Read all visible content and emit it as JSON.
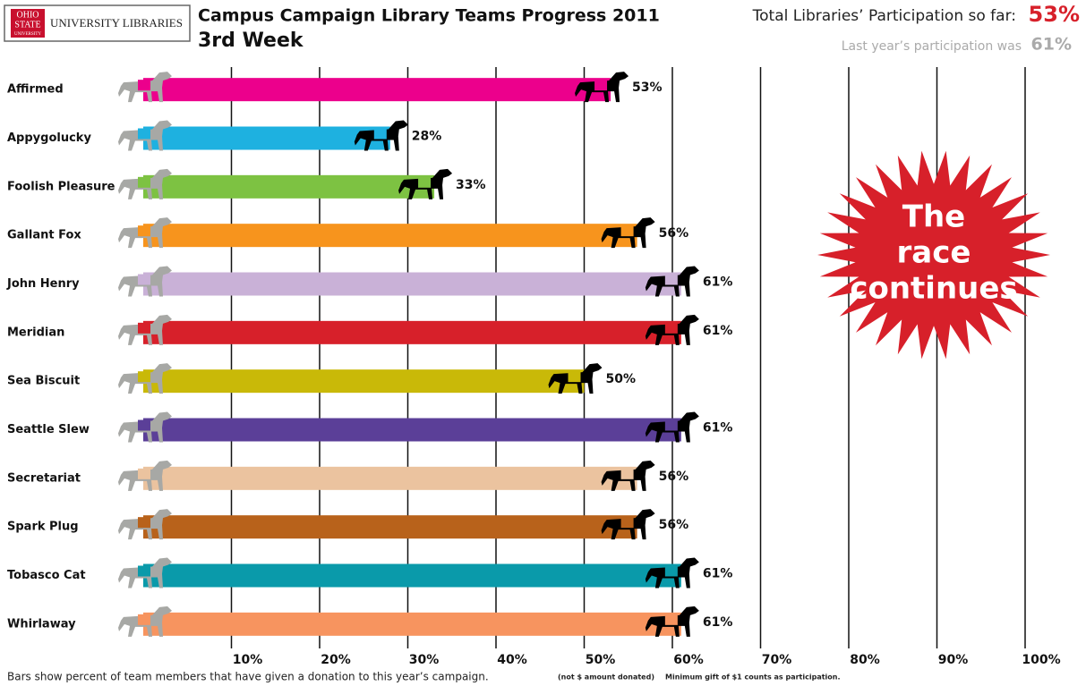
{
  "logo": {
    "mark": [
      "OHIO",
      "STATE"
    ],
    "mark_small": "UNIVERSITY",
    "name": "UNIVERSITY LIBRARIES"
  },
  "summary": {
    "current_label": "Total Libraries’ Participation so far:",
    "current_value": "53%",
    "last_label": "Last year’s participation was",
    "last_value": "61%"
  },
  "badge": [
    "The",
    "race",
    "continues"
  ],
  "footnote": {
    "main": "Bars show percent of team members that have given a donation to this year’s campaign.",
    "note1": "(not $ amount donated)",
    "note2": "Minimum gift of $1 counts as participation."
  },
  "chart_data": {
    "type": "bar",
    "orientation": "horizontal",
    "title": "Campus Campaign Library Teams Progress 2011",
    "subtitle": "3rd Week",
    "categories": [
      "Affirmed",
      "Appygolucky",
      "Foolish Pleasure",
      "Gallant Fox",
      "John Henry",
      "Meridian",
      "Sea Biscuit",
      "Seattle Slew",
      "Secretariat",
      "Spark Plug",
      "Tobasco Cat",
      "Whirlaway"
    ],
    "values": [
      53,
      28,
      33,
      56,
      61,
      61,
      50,
      61,
      56,
      56,
      61,
      61
    ],
    "value_labels": [
      "53%",
      "28%",
      "33%",
      "56%",
      "61%",
      "61%",
      "50%",
      "61%",
      "56%",
      "56%",
      "61%",
      "61%"
    ],
    "colors": [
      "#ec008c",
      "#1eb1e0",
      "#7dc242",
      "#f7941d",
      "#c9b1d7",
      "#d7202a",
      "#c9b908",
      "#5b3f98",
      "#ebc39f",
      "#b8621b",
      "#0a9aaa",
      "#f7945f"
    ],
    "xlim": [
      0,
      100
    ],
    "xticks": [
      {
        "value": 10,
        "label": "10%"
      },
      {
        "value": 20,
        "label": "20%"
      },
      {
        "value": 30,
        "label": "30%"
      },
      {
        "value": 40,
        "label": "40%"
      },
      {
        "value": 50,
        "label": "50%"
      },
      {
        "value": 60,
        "label": "60%"
      },
      {
        "value": 70,
        "label": "70%"
      },
      {
        "value": 80,
        "label": "80%"
      },
      {
        "value": 90,
        "label": "90%"
      },
      {
        "value": 100,
        "label": "100%"
      }
    ],
    "grid": true
  }
}
